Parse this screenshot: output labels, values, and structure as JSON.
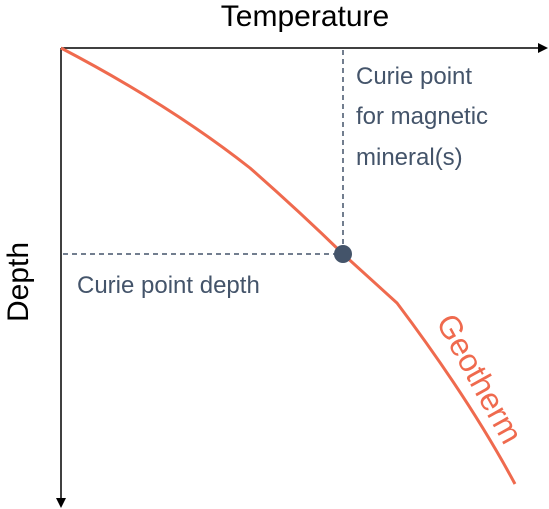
{
  "axes": {
    "x_label": "Temperature",
    "y_label": "Depth"
  },
  "annotations": {
    "curie_point": [
      "Curie point",
      "for magnetic",
      "mineral(s)"
    ],
    "curie_depth": "Curie point depth",
    "geotherm": "Geotherm"
  }
}
